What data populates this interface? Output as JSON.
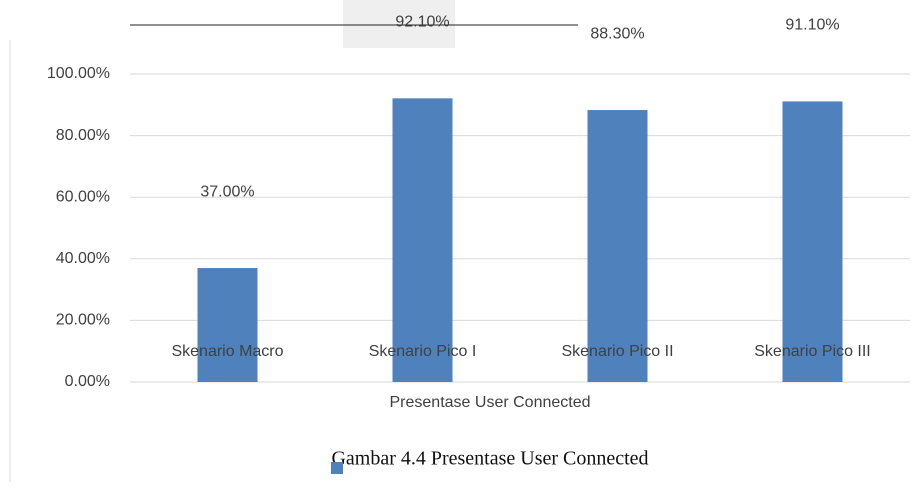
{
  "chart_data": {
    "type": "bar",
    "caption": "Gambar 4.4 Presentase User Connected",
    "x_label": "Presentase User Connected",
    "categories": [
      "Skenario Macro",
      "Skenario Pico I",
      "Skenario Pico II",
      "Skenario Pico III"
    ],
    "values": [
      37,
      92.1,
      88.3,
      91.1
    ],
    "value_labels": [
      "37.00%",
      "92.10%",
      "88.30%",
      "91.10%"
    ],
    "color": "#4f81bd",
    "ylim": [
      0,
      100
    ],
    "yticks": [
      {
        "value": 0,
        "label": "0.00%"
      },
      {
        "value": 20,
        "label": "20.00%"
      },
      {
        "value": 40,
        "label": "40.00%"
      },
      {
        "value": 60,
        "label": "60.00%"
      },
      {
        "value": 80,
        "label": "80.00%"
      },
      {
        "value": 100,
        "label": "100.00%"
      }
    ],
    "grid": true
  }
}
